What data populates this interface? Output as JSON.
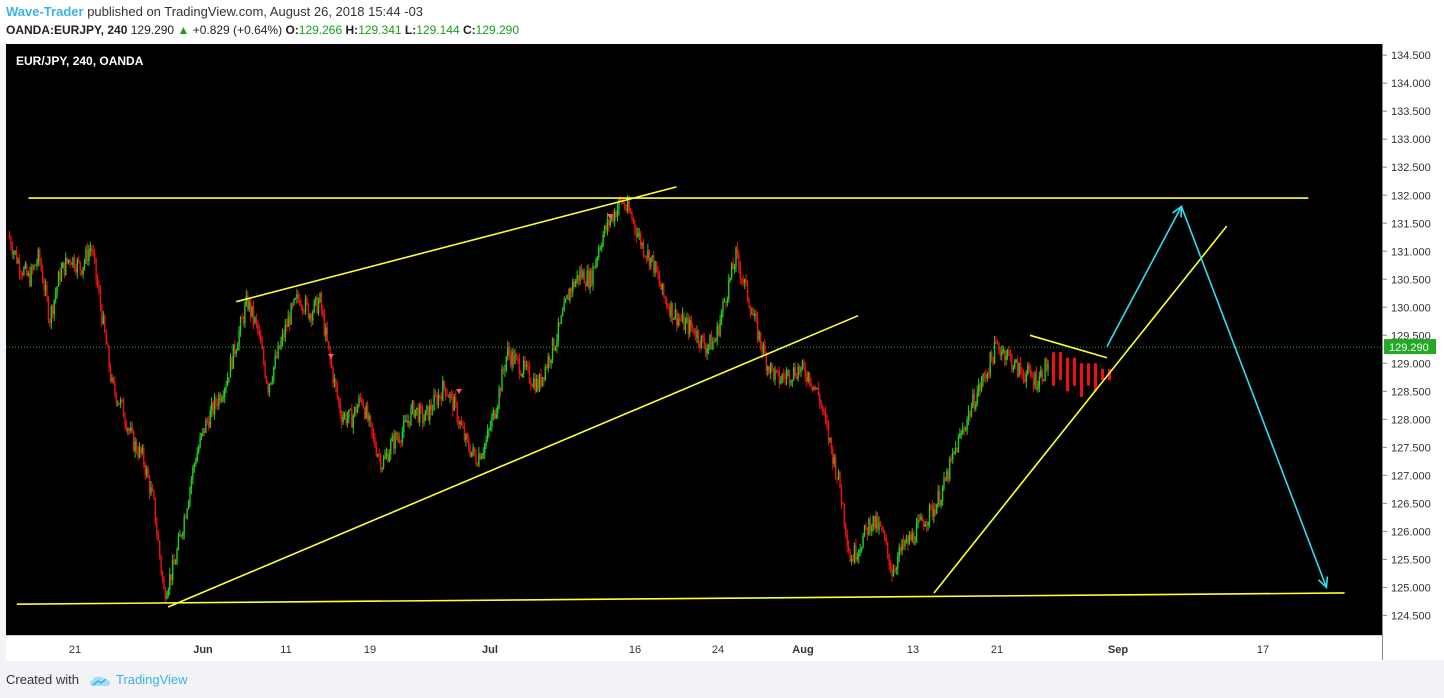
{
  "header": {
    "author": "Wave-Trader",
    "published_text": "published on TradingView.com, August 26, 2018 15:44 -03",
    "symbol": "OANDA:EURJPY, 240",
    "price": "129.290",
    "change": "+0.829 (+0.64%)",
    "open_label": "O:",
    "open": "129.266",
    "high_label": "H:",
    "high": "129.341",
    "low_label": "L:",
    "low": "129.144",
    "close_label": "C:",
    "close": "129.290"
  },
  "chart_label": "EUR/JPY, 240, OANDA",
  "footer": {
    "created_with": "Created with",
    "brand": "TradingView"
  },
  "colors": {
    "bull": "#22cc22",
    "bear": "#ee1111",
    "trendline": "#ffff33",
    "arrow": "#33ddee",
    "price_line": "#1faa1f"
  },
  "chart_data": {
    "type": "candlestick",
    "symbol": "EUR/JPY",
    "timeframe": "240",
    "ylim": [
      124.15,
      134.7
    ],
    "x_ticks": [
      "21",
      "Jun",
      "11",
      "19",
      "Jul",
      "16",
      "24",
      "Aug",
      "13",
      "21",
      "Sep",
      "17"
    ],
    "y_ticks": [
      "124.500",
      "125.000",
      "125.500",
      "126.000",
      "126.500",
      "127.000",
      "127.500",
      "128.000",
      "128.500",
      "129.000",
      "129.500",
      "130.000",
      "130.500",
      "131.000",
      "131.500",
      "132.000",
      "132.500",
      "133.000",
      "133.500",
      "134.000",
      "134.500"
    ],
    "last_price": "129.290",
    "path": [
      131.3,
      130.8,
      130.5,
      130.9,
      129.8,
      130.6,
      130.9,
      130.7,
      131.1,
      129.9,
      128.6,
      128.2,
      127.6,
      127.3,
      126.5,
      124.9,
      125.4,
      126.3,
      127.3,
      127.9,
      128.3,
      128.7,
      129.4,
      130.1,
      129.6,
      128.6,
      129.2,
      129.8,
      130.2,
      129.9,
      130.1,
      129.0,
      128.1,
      128.0,
      128.4,
      127.7,
      127.2,
      127.6,
      127.8,
      128.2,
      128.0,
      128.3,
      128.6,
      128.2,
      127.6,
      127.3,
      127.6,
      128.3,
      129.2,
      129.0,
      128.8,
      128.6,
      129.1,
      129.6,
      130.3,
      130.6,
      130.5,
      131.2,
      131.6,
      131.9,
      131.6,
      131.1,
      130.8,
      130.2,
      129.9,
      129.7,
      129.6,
      129.3,
      129.4,
      130.2,
      130.9,
      130.3,
      129.6,
      129.0,
      128.7,
      128.8,
      128.9,
      128.8,
      128.4,
      127.6,
      126.8,
      125.5,
      125.8,
      126.2,
      126.0,
      125.3,
      125.7,
      125.9,
      126.2,
      126.4,
      126.8,
      127.4,
      127.9,
      128.4,
      128.8,
      129.3,
      129.2,
      128.9,
      128.8,
      128.7,
      129.0
    ],
    "projected_bars": [
      [
        129.2,
        128.6
      ],
      [
        129.2,
        128.7
      ],
      [
        129.1,
        128.5
      ],
      [
        129.1,
        128.6
      ],
      [
        129.0,
        128.4
      ],
      [
        129.0,
        128.6
      ],
      [
        129.0,
        128.5
      ],
      [
        128.9,
        128.7
      ],
      [
        128.9,
        128.7
      ]
    ],
    "trendlines": [
      {
        "from": [
          "May 17",
          131.95
        ],
        "to": [
          "Sep 22",
          131.95
        ]
      },
      {
        "from": [
          "May 16",
          124.7
        ],
        "to": [
          "Sep 26",
          124.9
        ]
      },
      {
        "from": [
          "May 29",
          124.65
        ],
        "to": [
          "Aug 7",
          129.85
        ]
      },
      {
        "from": [
          "Jun 5",
          130.1
        ],
        "to": [
          "Jul 20",
          132.15
        ]
      },
      {
        "from": [
          "Aug 15",
          124.9
        ],
        "to": [
          "Sep 13",
          131.45
        ]
      },
      {
        "from": [
          "Aug 24",
          129.5
        ],
        "to": [
          "Aug 31",
          129.1
        ]
      }
    ],
    "projection_arrows": [
      {
        "from": [
          "Aug 31",
          129.3
        ],
        "to": [
          "Sep 8",
          131.8
        ]
      },
      {
        "from": [
          "Sep 8",
          131.8
        ],
        "to": [
          "Sep 24",
          125.0
        ]
      }
    ]
  }
}
